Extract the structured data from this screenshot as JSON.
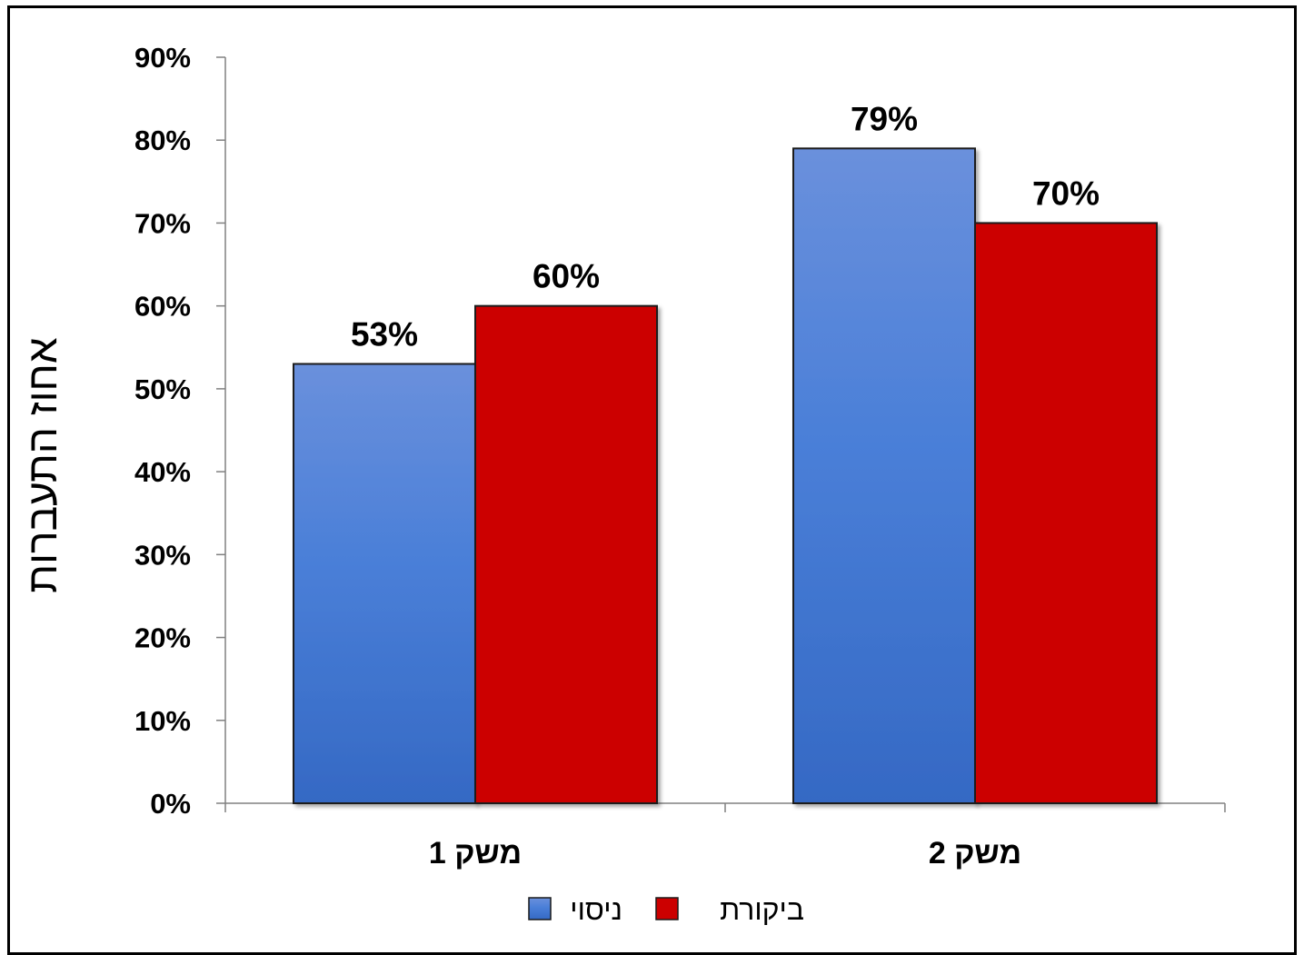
{
  "chart_data": {
    "type": "bar",
    "categories": [
      "משק 1",
      "משק 2"
    ],
    "series": [
      {
        "name": "ניסוי",
        "values": [
          53,
          79
        ],
        "color": "#4a7fd8"
      },
      {
        "name": "ביקורת",
        "values": [
          60,
          70
        ],
        "color": "#cc0000"
      }
    ],
    "ylabel": "אחוז התעברות",
    "xlabel": "",
    "ylim": [
      0,
      90
    ],
    "ytick_step": 10,
    "value_suffix": "%",
    "legend_position": "bottom",
    "grid": false
  }
}
